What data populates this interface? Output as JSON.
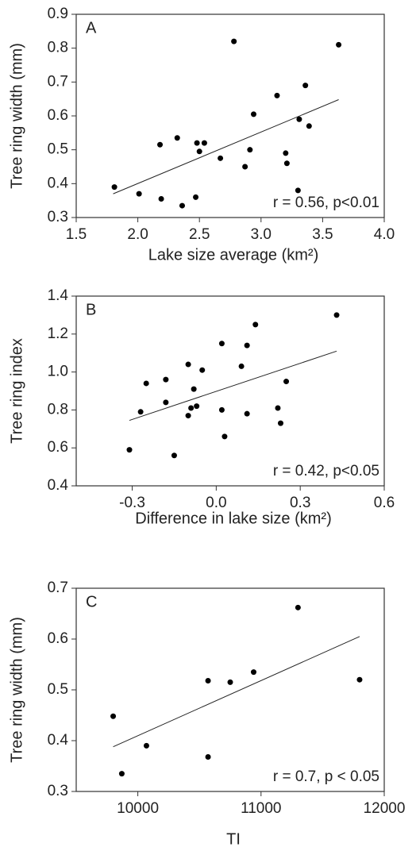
{
  "chart_data": [
    {
      "type": "scatter",
      "panel": "A",
      "annotation": "r = 0.56, p<0.01",
      "x_label": "Lake size average (km²)",
      "y_label": "Tree ring width (mm)",
      "x": [
        1.81,
        2.01,
        2.18,
        2.19,
        2.32,
        2.36,
        2.47,
        2.48,
        2.5,
        2.54,
        2.67,
        2.78,
        2.87,
        2.91,
        2.94,
        3.13,
        3.2,
        3.21,
        3.3,
        3.31,
        3.36,
        3.39,
        3.63
      ],
      "values": [
        0.39,
        0.37,
        0.515,
        0.355,
        0.535,
        0.335,
        0.36,
        0.52,
        0.495,
        0.52,
        0.475,
        0.82,
        0.45,
        0.5,
        0.605,
        0.66,
        0.49,
        0.46,
        0.38,
        0.59,
        0.69,
        0.57,
        0.81
      ],
      "trendline": {
        "x": [
          1.8,
          3.63
        ],
        "values": [
          0.37,
          0.648
        ]
      },
      "color": "#000000",
      "xlim": [
        1.5,
        4.0
      ],
      "xticks": [
        {
          "value": 1.5,
          "label": "1.5"
        },
        {
          "value": 2,
          "label": "2.0"
        },
        {
          "value": 2.5,
          "label": "2.5"
        },
        {
          "value": 3,
          "label": "3.0"
        },
        {
          "value": 3.5,
          "label": "3.5"
        },
        {
          "value": 4,
          "label": "4.0"
        }
      ],
      "ylim": [
        0.3,
        0.9
      ],
      "yticks": [
        0.3,
        0.4,
        0.5,
        0.6,
        0.7,
        0.8,
        0.9
      ]
    },
    {
      "type": "scatter",
      "panel": "B",
      "annotation": "r = 0.42, p<0.05",
      "x_label": "Difference in lake size (km²)",
      "y_label": "Tree ring index",
      "x": [
        -0.31,
        -0.27,
        -0.25,
        -0.18,
        -0.18,
        -0.15,
        -0.1,
        -0.1,
        -0.09,
        -0.08,
        -0.07,
        -0.05,
        0.02,
        0.02,
        0.03,
        0.09,
        0.11,
        0.11,
        0.14,
        0.22,
        0.23,
        0.25,
        0.43
      ],
      "values": [
        0.59,
        0.79,
        0.94,
        0.96,
        0.84,
        0.56,
        1.04,
        0.77,
        0.81,
        0.91,
        0.82,
        1.01,
        1.15,
        0.8,
        0.66,
        1.03,
        1.14,
        0.78,
        1.25,
        0.81,
        0.73,
        0.95,
        1.3
      ],
      "trendline": {
        "x": [
          -0.31,
          0.43
        ],
        "values": [
          0.745,
          1.11
        ]
      },
      "color": "#000000",
      "xlim": [
        -0.5,
        0.6
      ],
      "xticks": [
        {
          "value": -0.3,
          "label": "-0.3"
        },
        {
          "value": 0,
          "label": "0.0"
        },
        0.3,
        0.6
      ],
      "ylim": [
        0.4,
        1.4
      ],
      "yticks": [
        0.4,
        0.6,
        0.8,
        {
          "value": 1,
          "label": "1.0"
        },
        1.2,
        1.4
      ]
    },
    {
      "type": "scatter",
      "panel": "C",
      "annotation": "r = 0.7, p < 0.05",
      "x_label": "TI",
      "y_label": "Tree ring width (mm)",
      "x": [
        9800,
        9870,
        10070,
        10570,
        10570,
        10750,
        10940,
        11300,
        11800
      ],
      "values": [
        0.448,
        0.335,
        0.39,
        0.518,
        0.368,
        0.515,
        0.535,
        0.662,
        0.52
      ],
      "trendline": {
        "x": [
          9800,
          11800
        ],
        "values": [
          0.388,
          0.605
        ]
      },
      "color": "#000000",
      "xlim": [
        9500,
        12000
      ],
      "xticks": [
        10000,
        11000,
        12000
      ],
      "ylim": [
        0.3,
        0.7
      ],
      "yticks": [
        0.3,
        0.4,
        0.5,
        0.6,
        0.7
      ]
    }
  ]
}
